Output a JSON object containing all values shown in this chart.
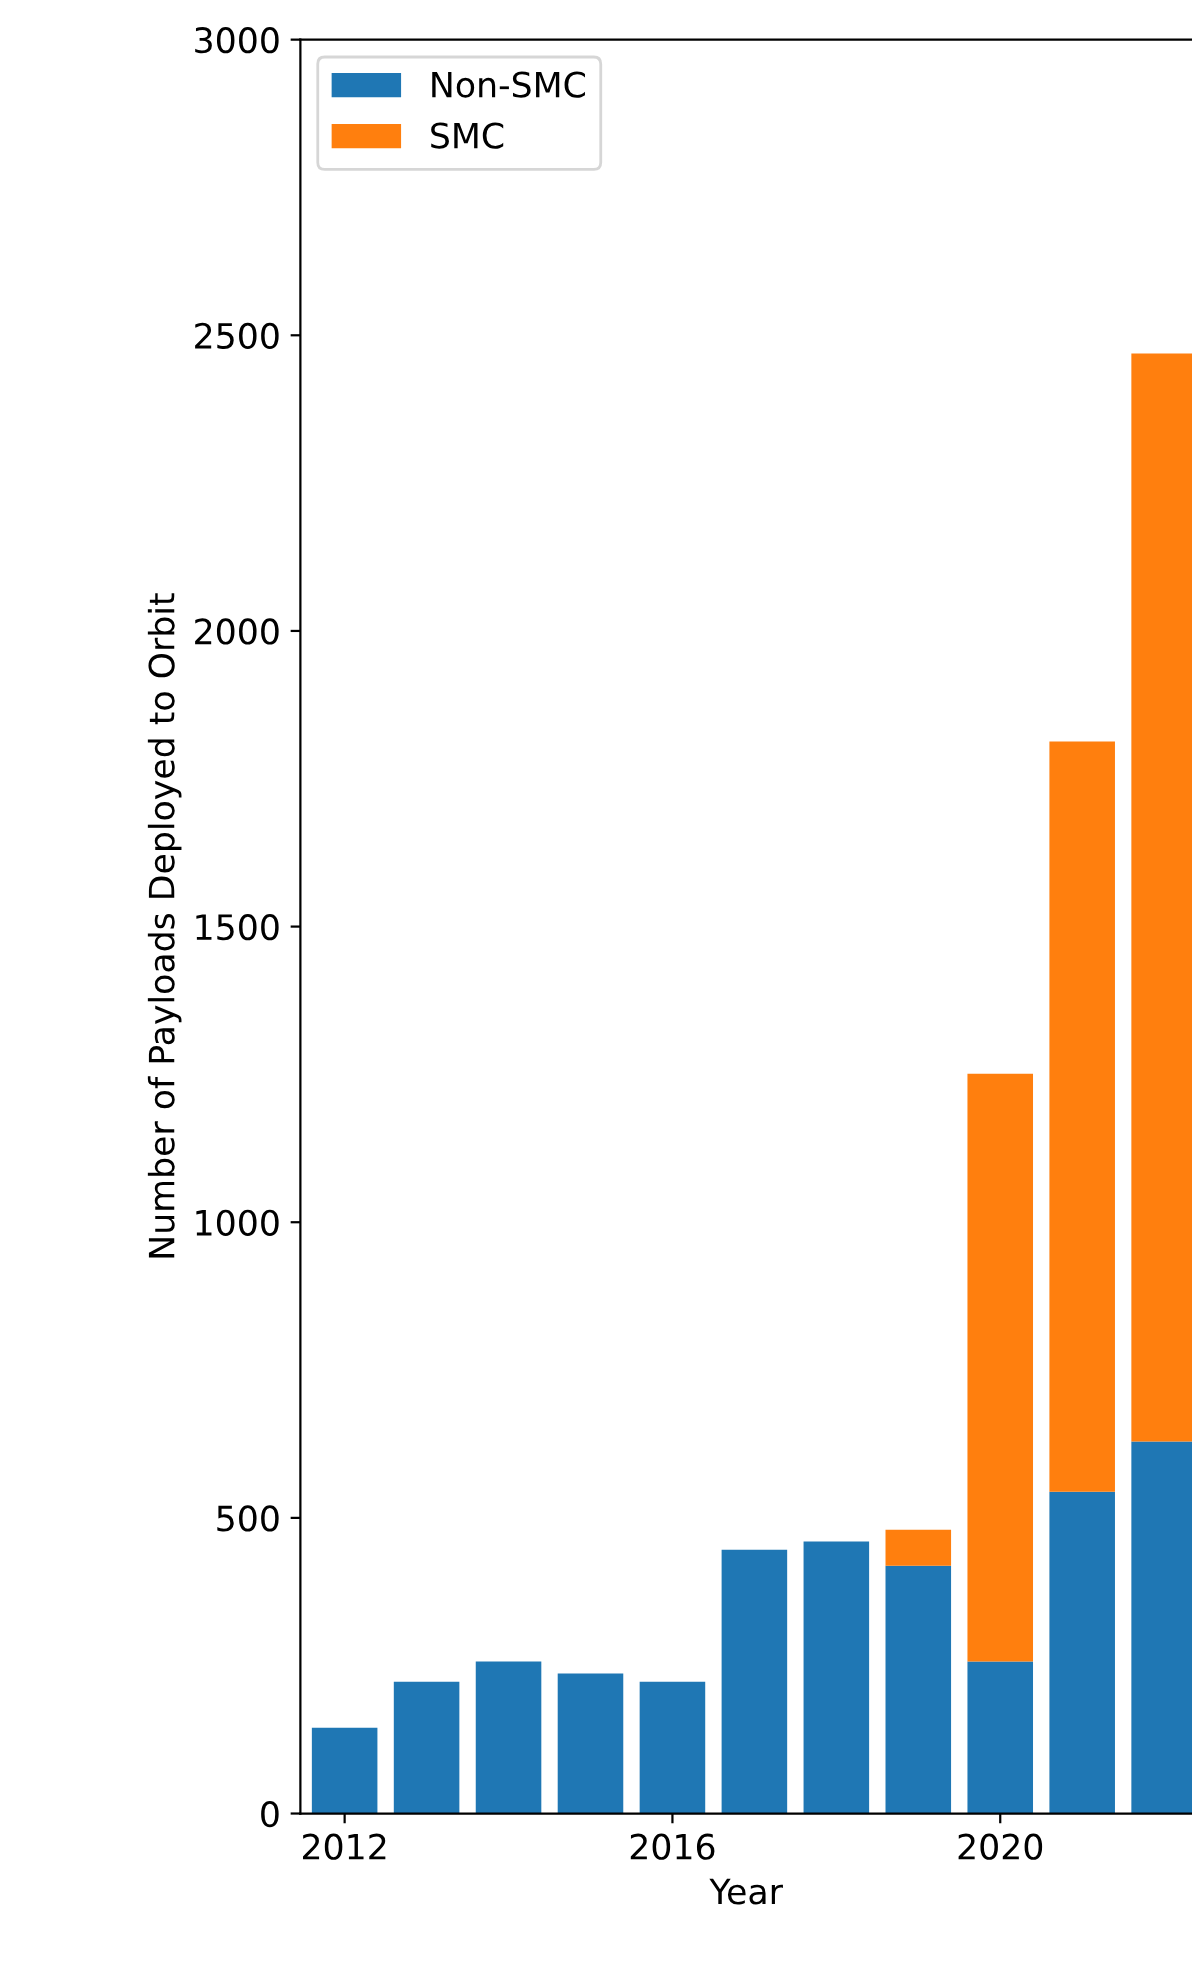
{
  "chart_data": {
    "type": "bar",
    "stacked": true,
    "xlabel": "Year",
    "ylabel": "Number of Payloads Deployed to Orbit",
    "x": [
      2012,
      2013,
      2014,
      2015,
      2016,
      2017,
      2018,
      2019,
      2020,
      2021,
      2022
    ],
    "series": [
      {
        "name": "Non-SMC",
        "color": "#1f77b4",
        "values": [
          145,
          223,
          257,
          237,
          223,
          446,
          460,
          419,
          257,
          544,
          629
        ]
      },
      {
        "name": "SMC",
        "color": "#ff7f0e",
        "values": [
          0,
          0,
          0,
          0,
          0,
          0,
          0,
          61,
          994,
          1269,
          1840
        ]
      }
    ],
    "xlim": [
      2011.46,
      2022.34
    ],
    "xticks": [
      2012,
      2016,
      2020
    ],
    "ylim": [
      0,
      3000
    ],
    "yticks": [
      0,
      500,
      1000,
      1500,
      2000,
      2500,
      3000
    ],
    "legend": "top left",
    "grid": false
  }
}
